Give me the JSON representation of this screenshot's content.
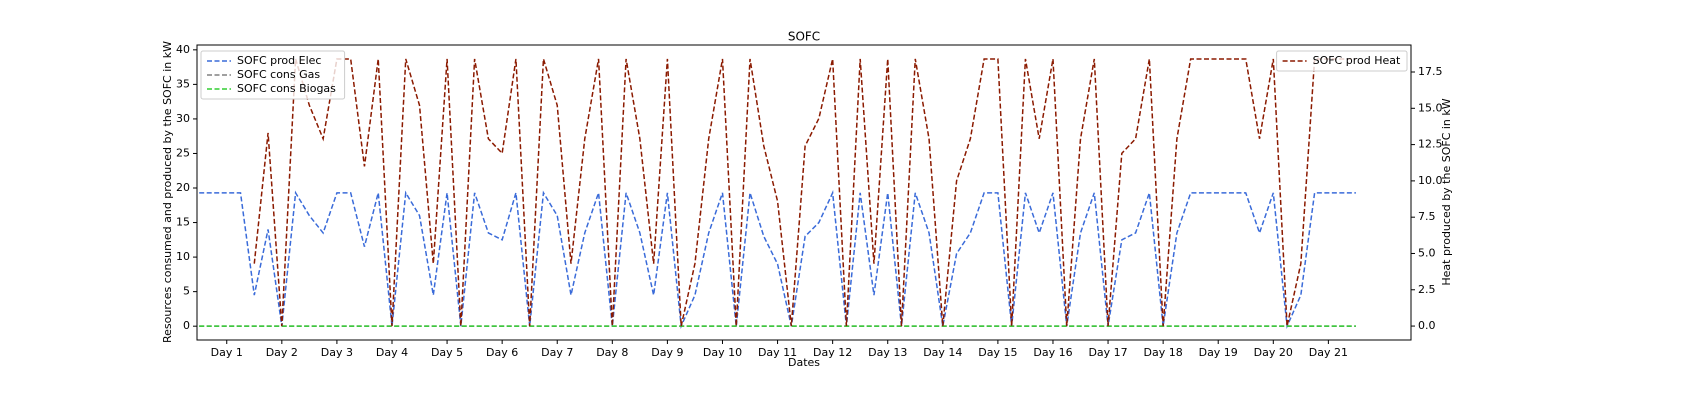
{
  "chart_data": {
    "type": "line",
    "title": "SOFC",
    "xlabel": "Dates",
    "ylabel": "Resources consumed and produced by the SOFC in kW",
    "y2label": "Heat produced by the SOFC in kW",
    "linestyle": "dashed",
    "grid": false,
    "legend": "upper left",
    "legend2": "upper right",
    "x": [
      0.5,
      0.75,
      1,
      1.25,
      1.5,
      1.75,
      2,
      2.25,
      2.5,
      2.75,
      3,
      3.25,
      3.5,
      3.75,
      4,
      4.25,
      4.5,
      4.75,
      5,
      5.25,
      5.5,
      5.75,
      6,
      6.25,
      6.5,
      6.75,
      7,
      7.25,
      7.5,
      7.75,
      8,
      8.25,
      8.5,
      8.75,
      9,
      9.25,
      9.5,
      9.75,
      10,
      10.25,
      10.5,
      10.75,
      11,
      11.25,
      11.5,
      11.75,
      12,
      12.25,
      12.5,
      12.75,
      13,
      13.25,
      13.5,
      13.75,
      14,
      14.25,
      14.5,
      14.75,
      15,
      15.25,
      15.5,
      15.75,
      16,
      16.25,
      16.5,
      16.75,
      17,
      17.25,
      17.5,
      17.75,
      18,
      18.25,
      18.5,
      18.75,
      19,
      19.25,
      19.5,
      19.75,
      20,
      20.25,
      20.5,
      20.75,
      21,
      21.25,
      21.5
    ],
    "xlim": [
      0.46,
      22.5
    ],
    "xticks": [
      {
        "value": 1,
        "label": "Day 1"
      },
      {
        "value": 2,
        "label": "Day 2"
      },
      {
        "value": 3,
        "label": "Day 3"
      },
      {
        "value": 4,
        "label": "Day 4"
      },
      {
        "value": 5,
        "label": "Day 5"
      },
      {
        "value": 6,
        "label": "Day 6"
      },
      {
        "value": 7,
        "label": "Day 7"
      },
      {
        "value": 8,
        "label": "Day 8"
      },
      {
        "value": 9,
        "label": "Day 9"
      },
      {
        "value": 10,
        "label": "Day 10"
      },
      {
        "value": 11,
        "label": "Day 11"
      },
      {
        "value": 12,
        "label": "Day 12"
      },
      {
        "value": 13,
        "label": "Day 13"
      },
      {
        "value": 14,
        "label": "Day 14"
      },
      {
        "value": 15,
        "label": "Day 15"
      },
      {
        "value": 16,
        "label": "Day 16"
      },
      {
        "value": 17,
        "label": "Day 17"
      },
      {
        "value": 18,
        "label": "Day 18"
      },
      {
        "value": 19,
        "label": "Day 19"
      },
      {
        "value": 20,
        "label": "Day 20"
      },
      {
        "value": 21,
        "label": "Day 21"
      }
    ],
    "ylim": [
      -2,
      40.7
    ],
    "yticks": [
      0,
      5,
      10,
      15,
      20,
      25,
      30,
      35,
      40
    ],
    "y2lim": [
      -0.96,
      19.36
    ],
    "y2ticks": [
      {
        "value": 0,
        "label": "0.0"
      },
      2.5,
      {
        "value": 5,
        "label": "5.0"
      },
      7.5,
      {
        "value": 10,
        "label": "10.0"
      },
      12.5,
      {
        "value": 15,
        "label": "15.0"
      },
      17.5
    ],
    "series": [
      {
        "name": "SOFC prod Elec",
        "color": "#3a6bd9",
        "axis": "y",
        "values": [
          19.3,
          19.3,
          19.3,
          19.3,
          4.5,
          14,
          0,
          19.3,
          16,
          13.5,
          19.3,
          19.3,
          11.5,
          19.3,
          0,
          19.3,
          16,
          4.5,
          19.3,
          0,
          19.3,
          13.5,
          12.5,
          19.3,
          0,
          19.3,
          16,
          4.5,
          13.5,
          19.3,
          0,
          19.3,
          13.5,
          4.5,
          19.3,
          0,
          4.5,
          13.5,
          19.3,
          0,
          19.3,
          13,
          9,
          0,
          13,
          15,
          19.3,
          0,
          19.3,
          4.5,
          19.3,
          0,
          19.3,
          13.5,
          0,
          10.5,
          13.5,
          19.3,
          19.3,
          0,
          19.3,
          13.5,
          19.3,
          0,
          13.5,
          19.3,
          0,
          12.5,
          13.5,
          19.3,
          0,
          13.5,
          19.3,
          19.3,
          19.3,
          19.3,
          19.3,
          13.5,
          19.3,
          0,
          4.5,
          19.3,
          19.3,
          19.3,
          19.3
        ]
      },
      {
        "name": "SOFC cons Gas",
        "color": "#808080",
        "axis": "y",
        "values": [
          0,
          0,
          0,
          0,
          0,
          0,
          0,
          0,
          0,
          0,
          0,
          0,
          0,
          0,
          0,
          0,
          0,
          0,
          0,
          0,
          0,
          0,
          0,
          0,
          0,
          0,
          0,
          0,
          0,
          0,
          0,
          0,
          0,
          0,
          0,
          0,
          0,
          0,
          0,
          0,
          0,
          0,
          0,
          0,
          0,
          0,
          0,
          0,
          0,
          0,
          0,
          0,
          0,
          0,
          0,
          0,
          0,
          0,
          0,
          0,
          0,
          0,
          0,
          0,
          0,
          0,
          0,
          0,
          0,
          0,
          0,
          0,
          0,
          0,
          0,
          0,
          0,
          0,
          0,
          0,
          0,
          0,
          0,
          0,
          0
        ]
      },
      {
        "name": "SOFC cons Biogas",
        "color": "#32cd32",
        "axis": "y",
        "values": [
          0,
          0,
          0,
          0,
          0,
          0,
          0,
          0,
          0,
          0,
          0,
          0,
          0,
          0,
          0,
          0,
          0,
          0,
          0,
          0,
          0,
          0,
          0,
          0,
          0,
          0,
          0,
          0,
          0,
          0,
          0,
          0,
          0,
          0,
          0,
          0,
          0,
          0,
          0,
          0,
          0,
          0,
          0,
          0,
          0,
          0,
          0,
          0,
          0,
          0,
          0,
          0,
          0,
          0,
          0,
          0,
          0,
          0,
          0,
          0,
          0,
          0,
          0,
          0,
          0,
          0,
          0,
          0,
          0,
          0,
          0,
          0,
          0,
          0,
          0,
          0,
          0,
          0,
          0,
          0,
          0,
          0,
          0,
          0,
          0
        ]
      },
      {
        "name": "SOFC prod Heat",
        "color": "#8b1a00",
        "axis": "y2",
        "values": [
          null,
          null,
          null,
          null,
          4.3,
          13.3,
          0,
          18.4,
          15.2,
          12.9,
          18.4,
          18.4,
          11.0,
          18.4,
          0,
          18.4,
          15.2,
          4.3,
          18.4,
          0,
          18.4,
          12.9,
          11.9,
          18.4,
          0,
          18.4,
          15.2,
          4.3,
          12.9,
          18.4,
          0,
          18.4,
          12.9,
          4.3,
          18.4,
          0,
          4.3,
          12.9,
          18.4,
          0,
          18.4,
          12.4,
          8.6,
          0,
          12.4,
          14.3,
          18.4,
          0,
          18.4,
          4.3,
          18.4,
          0,
          18.4,
          12.9,
          0,
          10.0,
          12.9,
          18.4,
          18.4,
          0,
          18.4,
          12.9,
          18.4,
          0,
          12.9,
          18.4,
          0,
          11.9,
          12.9,
          18.4,
          0,
          12.9,
          18.4,
          18.4,
          18.4,
          18.4,
          18.4,
          12.9,
          18.4,
          0,
          4.3,
          18.4,
          18.4,
          18.4,
          18.4
        ]
      }
    ]
  }
}
